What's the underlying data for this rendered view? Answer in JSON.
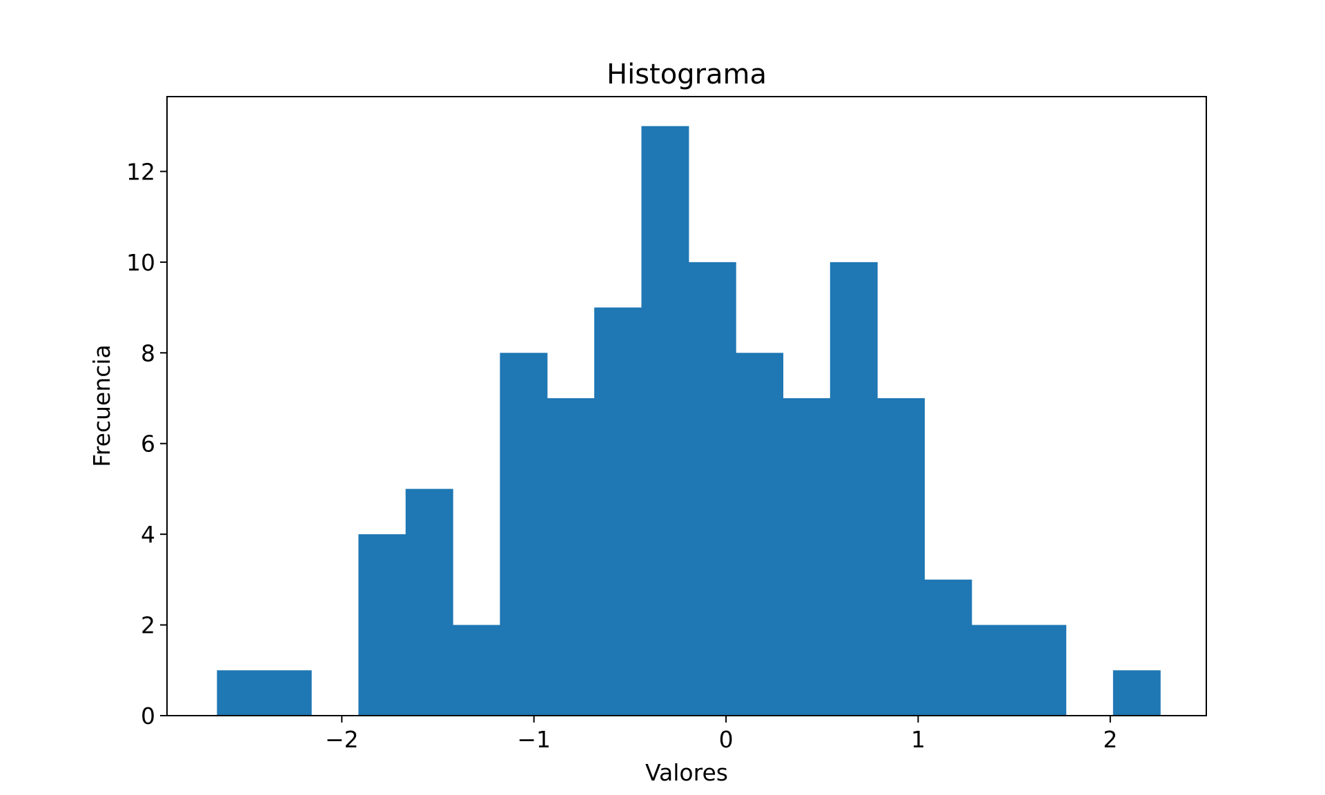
{
  "chart_data": {
    "type": "bar",
    "histogram": true,
    "title": "Histograma",
    "xlabel": "Valores",
    "ylabel": "Frecuencia",
    "xlim": [
      -2.91,
      2.5
    ],
    "ylim": [
      0,
      13.65
    ],
    "bin_edges": [
      -2.65,
      -2.4045,
      -2.159,
      -1.9135,
      -1.668,
      -1.4225,
      -1.177,
      -0.9315,
      -0.686,
      -0.4405,
      -0.195,
      0.0505,
      0.296,
      0.5415,
      0.787,
      1.0325,
      1.278,
      1.5235,
      1.769,
      2.0145,
      2.26
    ],
    "values": [
      1,
      1,
      0,
      4,
      5,
      2,
      8,
      7,
      9,
      13,
      10,
      8,
      7,
      10,
      7,
      3,
      2,
      2,
      0,
      1
    ],
    "bar_color": "#1f77b4",
    "x_ticks": [
      {
        "value": -2,
        "label": "−2"
      },
      {
        "value": -1,
        "label": "−1"
      },
      {
        "value": 0,
        "label": "0"
      },
      {
        "value": 1,
        "label": "1"
      },
      {
        "value": 2,
        "label": "2"
      }
    ],
    "y_ticks": [
      {
        "value": 0,
        "label": "0"
      },
      {
        "value": 2,
        "label": "2"
      },
      {
        "value": 4,
        "label": "4"
      },
      {
        "value": 6,
        "label": "6"
      },
      {
        "value": 8,
        "label": "8"
      },
      {
        "value": 10,
        "label": "10"
      },
      {
        "value": 12,
        "label": "12"
      }
    ],
    "grid": false,
    "legend": "none"
  }
}
